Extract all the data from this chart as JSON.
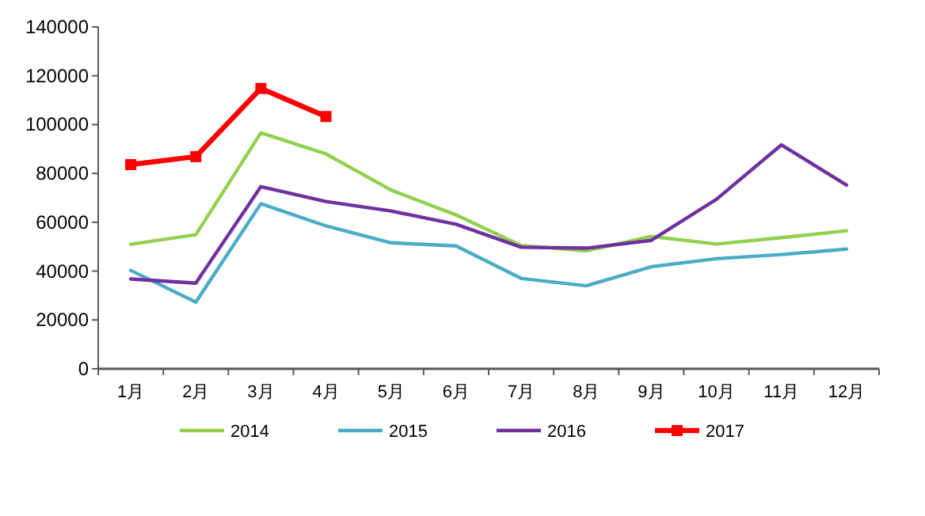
{
  "chart_data": {
    "type": "line",
    "categories": [
      "1月",
      "2月",
      "3月",
      "4月",
      "5月",
      "6月",
      "7月",
      "8月",
      "9月",
      "10月",
      "11月",
      "12月"
    ],
    "series": [
      {
        "name": "2014",
        "color": "#92d050",
        "values": [
          51000,
          54900,
          96600,
          88000,
          73200,
          63000,
          50500,
          48300,
          54200,
          51100,
          53700,
          56500
        ]
      },
      {
        "name": "2015",
        "color": "#4bacc6",
        "values": [
          40300,
          27300,
          67600,
          58500,
          51600,
          50300,
          37000,
          34000,
          41800,
          45100,
          46800,
          49000
        ]
      },
      {
        "name": "2016",
        "color": "#7030a0",
        "values": [
          36800,
          35100,
          74600,
          68500,
          64600,
          59200,
          49800,
          49400,
          52600,
          69400,
          91700,
          75200
        ]
      },
      {
        "name": "2017",
        "color": "#ff0000",
        "marker": "square",
        "values": [
          83600,
          86900,
          114800,
          103300,
          null,
          null,
          null,
          null,
          null,
          null,
          null,
          null
        ]
      }
    ],
    "ylim": [
      0,
      140000
    ],
    "yticks": [
      0,
      20000,
      40000,
      60000,
      80000,
      100000,
      120000,
      140000
    ],
    "grid": false,
    "legend": "bottom"
  }
}
